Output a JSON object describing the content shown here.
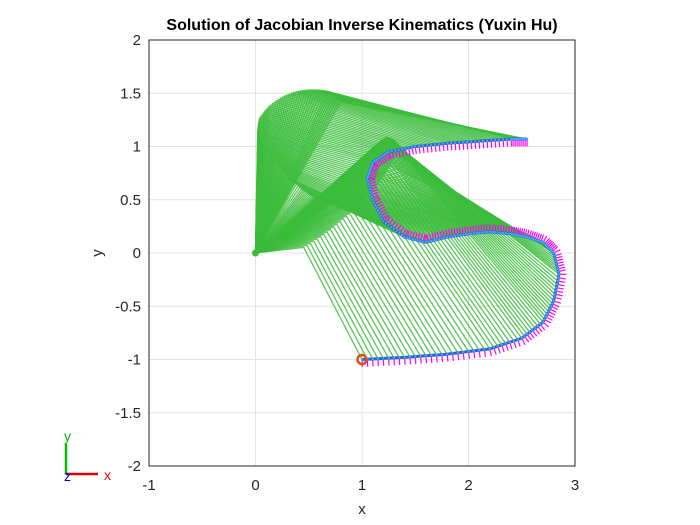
{
  "chart_data": {
    "type": "line",
    "title": "Solution of Jacobian Inverse Kinematics (Yuxin Hu)",
    "xlabel": "x",
    "ylabel": "y",
    "xlim": [
      -1,
      3
    ],
    "ylim": [
      -2,
      2
    ],
    "x_ticks": [
      "-1",
      "0",
      "1",
      "2",
      "3"
    ],
    "y_ticks": [
      "-2",
      "-1.5",
      "-1",
      "-0.5",
      "0",
      "0.5",
      "1",
      "1.5",
      "2"
    ],
    "grid": true,
    "end_effector_path": {
      "x": [
        1.0,
        1.4,
        1.8,
        2.2,
        2.5,
        2.7,
        2.8,
        2.85,
        2.8,
        2.7,
        2.55,
        2.4,
        2.2,
        2.0,
        1.8,
        1.6,
        1.4,
        1.2,
        1.1,
        1.05,
        1.1,
        1.25,
        1.5,
        1.8,
        2.1,
        2.4,
        2.55
      ],
      "y": [
        -1.0,
        -0.98,
        -0.95,
        -0.9,
        -0.8,
        -0.65,
        -0.45,
        -0.2,
        0.0,
        0.1,
        0.15,
        0.18,
        0.2,
        0.18,
        0.15,
        0.1,
        0.15,
        0.3,
        0.5,
        0.7,
        0.85,
        0.95,
        1.0,
        1.03,
        1.05,
        1.07,
        1.07
      ]
    },
    "start_point": {
      "x": 1.0,
      "y": -1.0
    },
    "base_point": {
      "x": 0.0,
      "y": 0.0
    },
    "colors": {
      "path": "#2e62c9",
      "arm": "#3cbc3c",
      "frames": "#ff00ff",
      "start_marker": "#d95319"
    }
  },
  "triad": {
    "x_label": "x",
    "y_label": "y",
    "z_label": "z",
    "x_color": "#e00000",
    "y_color": "#00c000",
    "z_color": "#0000e0"
  }
}
